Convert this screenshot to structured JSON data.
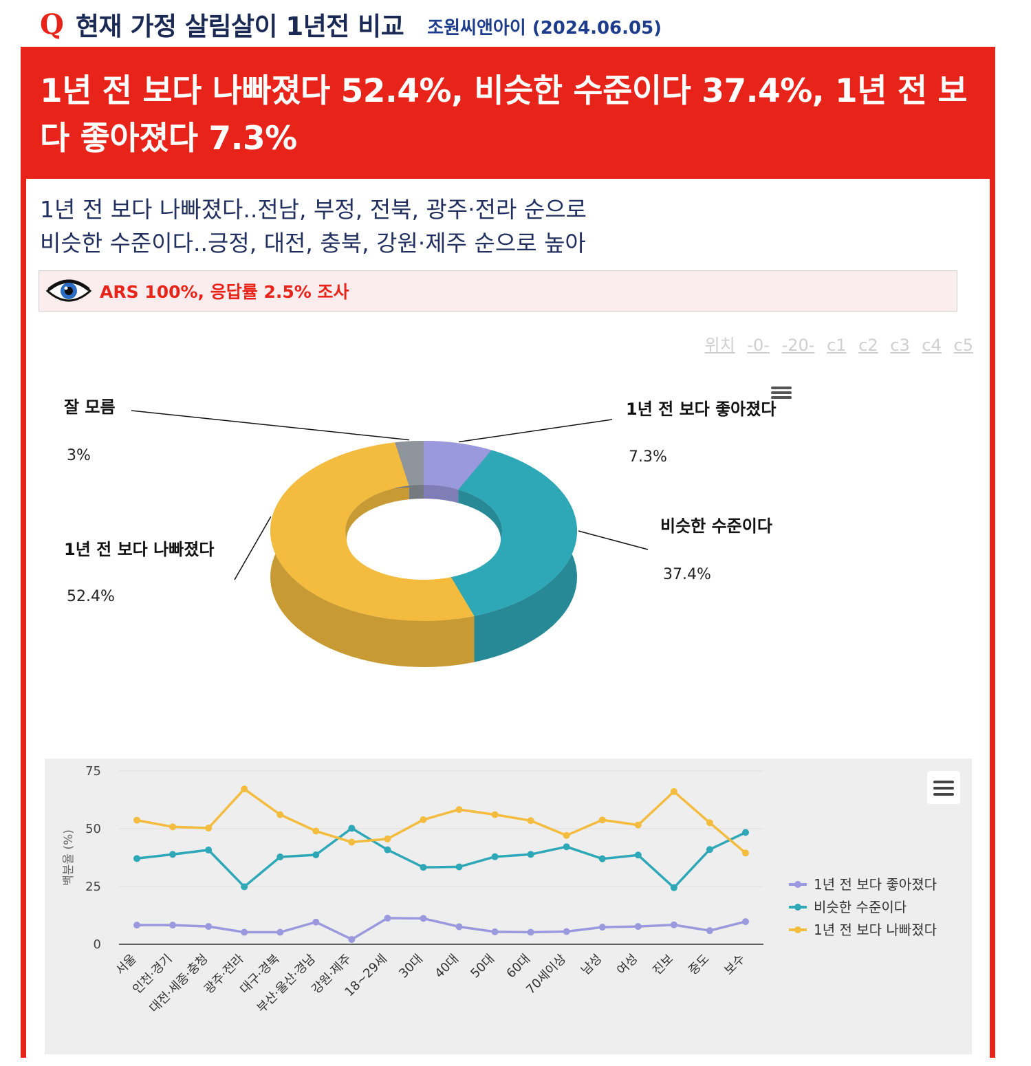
{
  "header": {
    "q_mark": "Q",
    "title": "현재 가정 살림살이 1년전 비교",
    "source": "조원씨앤아이 (2024.06.05)"
  },
  "headline": "1년 전 보다 나빠졌다 52.4%, 비슷한 수준이다 37.4%, 1년 전 보다 좋아졌다 7.3%",
  "subtitle": {
    "line1": "1년 전 보다 나빠졌다..전남, 부정, 전북, 광주·전라 순으로",
    "line2": "비슷한 수준이다..긍정, 대전, 충북, 강원·제주 순으로 높아"
  },
  "method": {
    "icon": "eye-icon",
    "text": "ARS 100%, 응답률 2.5% 조사"
  },
  "position_links": [
    "위치",
    "-0-",
    "-20-",
    "c1",
    "c2",
    "c3",
    "c4",
    "c5"
  ],
  "colors": {
    "accent": "#e8231a",
    "navy": "#1b2a55",
    "better": "#9b99dd",
    "similar": "#2ea7b6",
    "worse": "#f4bc3f",
    "unknown": "#8f959c"
  },
  "chart_data": [
    {
      "type": "pie",
      "variant": "3d-donut",
      "slices": [
        {
          "label": "1년 전 보다 좋아졌다",
          "value": 7.3,
          "value_label": "7.3%",
          "color": "#9b99dd"
        },
        {
          "label": "비슷한 수준이다",
          "value": 37.4,
          "value_label": "37.4%",
          "color": "#2ea7b6"
        },
        {
          "label": "1년 전 보다 나빠졌다",
          "value": 52.4,
          "value_label": "52.4%",
          "color": "#f4bc3f"
        },
        {
          "label": "잘 모름",
          "value": 3,
          "value_label": "3%",
          "color": "#8f959c"
        }
      ],
      "menu_icon": "hamburger-icon"
    },
    {
      "type": "line",
      "categories": [
        "서울",
        "인천·경기",
        "대전·세종·충청",
        "광주·전라",
        "대구·경북",
        "부산·울산·경남",
        "강원·제주",
        "18~29세",
        "30대",
        "40대",
        "50대",
        "60대",
        "70세이상",
        "남성",
        "여성",
        "진보",
        "중도",
        "보수"
      ],
      "series": [
        {
          "name": "1년 전 보다 좋아졌다",
          "color": "#9b99dd",
          "values": [
            8.3,
            8.3,
            7.7,
            5.2,
            5.2,
            9.6,
            2.1,
            11.3,
            11.2,
            7.6,
            5.4,
            5.2,
            5.5,
            7.4,
            7.7,
            8.4,
            5.9,
            9.8
          ]
        },
        {
          "name": "비슷한 수준이다",
          "color": "#2ea7b6",
          "values": [
            37.1,
            38.9,
            40.8,
            24.9,
            37.8,
            38.7,
            50.2,
            40.9,
            33.3,
            33.5,
            37.9,
            38.9,
            42.2,
            37.0,
            38.6,
            24.5,
            41.0,
            48.4
          ]
        },
        {
          "name": "1년 전 보다 나빠졌다",
          "color": "#f4bc3f",
          "values": [
            53.7,
            50.8,
            50.3,
            67.2,
            56.1,
            49.0,
            44.2,
            45.6,
            53.9,
            58.3,
            56.1,
            53.5,
            47.1,
            53.8,
            51.6,
            66.1,
            52.6,
            39.5
          ]
        }
      ],
      "ylabel": "백분율 (%)",
      "ylim": [
        0,
        75
      ],
      "yticks": [
        0,
        25,
        50,
        75
      ],
      "legend_position": "right",
      "grid": true,
      "menu_icon": "hamburger-icon"
    }
  ]
}
